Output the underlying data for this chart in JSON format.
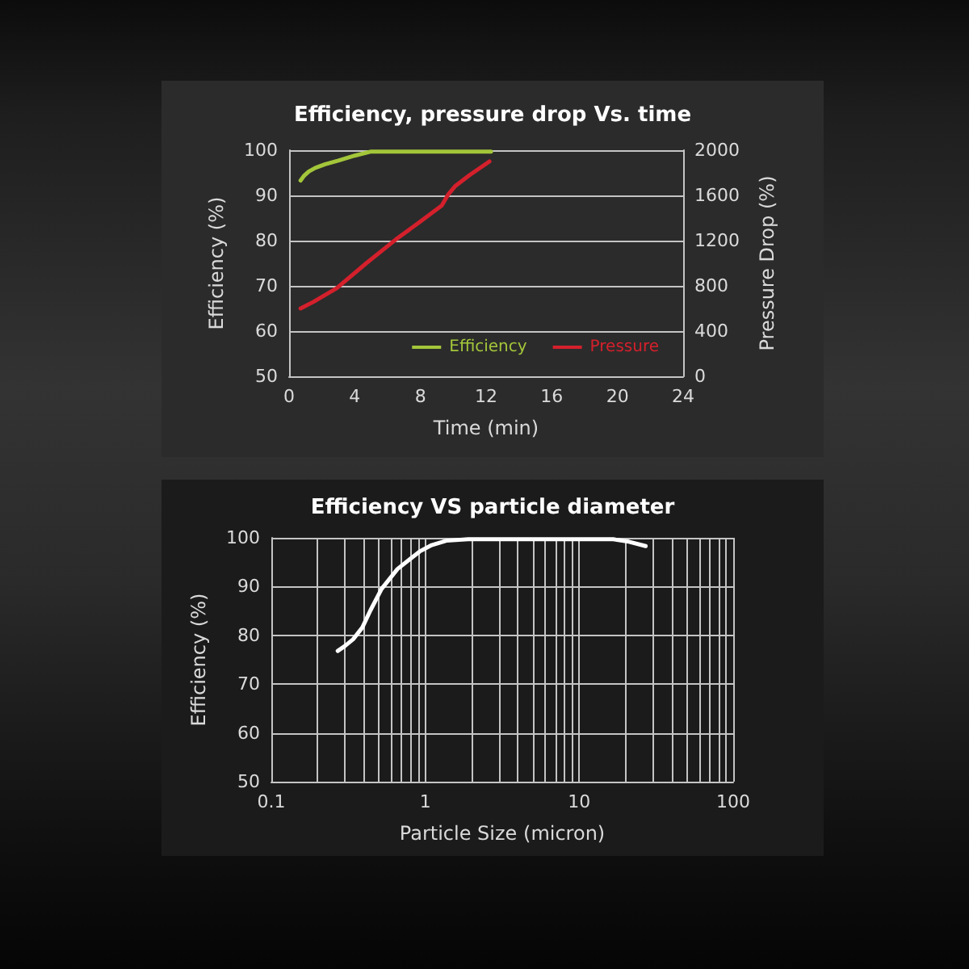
{
  "chart_data": [
    {
      "type": "line",
      "title": "Efficiency, pressure drop Vs. time",
      "xlabel": "Time (min)",
      "ylabel": "Efficiency (%)",
      "y2label": "Pressure Drop (%)",
      "xlim": [
        0,
        24
      ],
      "xticks": [
        0,
        4,
        8,
        12,
        16,
        20,
        24
      ],
      "ylim": [
        50,
        100
      ],
      "yticks": [
        50,
        60,
        70,
        80,
        90,
        100
      ],
      "y2lim": [
        0,
        2000
      ],
      "y2ticks": [
        0,
        400,
        800,
        1200,
        1600,
        2000
      ],
      "grid": "y",
      "legend": "bottom right",
      "series": [
        {
          "name": "Efficiency",
          "color": "#a3c63a",
          "x": [
            0.7,
            0.9,
            1.2,
            1.6,
            2.2,
            3.0,
            4.0,
            5.0,
            12.3
          ],
          "values": [
            93.3,
            94.3,
            95.3,
            96.1,
            96.9,
            97.7,
            98.8,
            99.7,
            99.7
          ]
        },
        {
          "name": "Pressure",
          "color": "#d4202c",
          "axis": "y2",
          "x": [
            0.7,
            1.5,
            2.9,
            4.7,
            6.5,
            8.0,
            9.3,
            9.5,
            9.7,
            10.1,
            11.0,
            12.2
          ],
          "values": [
            600,
            660,
            780,
            1000,
            1210,
            1370,
            1510,
            1560,
            1610,
            1680,
            1780,
            1900
          ]
        }
      ]
    },
    {
      "type": "line",
      "title": "Efficiency VS particle diameter",
      "xlabel": "Particle Size (micron)",
      "ylabel": "Efficiency (%)",
      "log": "x",
      "xlim": [
        0.1,
        100
      ],
      "xticks": [
        0.1,
        {
          "value": 0.2,
          "label": null
        },
        {
          "value": 0.3,
          "label": null
        },
        {
          "value": 0.4,
          "label": null
        },
        {
          "value": 0.5,
          "label": null
        },
        {
          "value": 0.6,
          "label": null
        },
        {
          "value": 0.7,
          "label": null
        },
        {
          "value": 0.8,
          "label": null
        },
        {
          "value": 0.9,
          "label": null
        },
        1,
        {
          "value": 2,
          "label": null
        },
        {
          "value": 3,
          "label": null
        },
        {
          "value": 4,
          "label": null
        },
        {
          "value": 5,
          "label": null
        },
        {
          "value": 6,
          "label": null
        },
        {
          "value": 7,
          "label": null
        },
        {
          "value": 8,
          "label": null
        },
        {
          "value": 9,
          "label": null
        },
        10,
        {
          "value": 20,
          "label": null
        },
        {
          "value": 30,
          "label": null
        },
        {
          "value": 40,
          "label": null
        },
        {
          "value": 50,
          "label": null
        },
        {
          "value": 60,
          "label": null
        },
        {
          "value": 70,
          "label": null
        },
        {
          "value": 80,
          "label": null
        },
        {
          "value": 90,
          "label": null
        },
        100
      ],
      "ylim": [
        50,
        100
      ],
      "yticks": [
        50,
        60,
        70,
        80,
        90,
        100
      ],
      "grid": true,
      "series": [
        {
          "color": "#ffffff",
          "x": [
            0.27,
            0.3,
            0.34,
            0.39,
            0.44,
            0.52,
            0.66,
            0.8,
            0.92,
            1.1,
            1.37,
            1.9,
            5,
            16.6,
            21,
            27
          ],
          "values": [
            76.8,
            77.8,
            79.2,
            81.6,
            85.1,
            89.5,
            93.6,
            95.7,
            97.2,
            98.5,
            99.4,
            99.7,
            99.7,
            99.7,
            99.2,
            98.3
          ]
        }
      ]
    }
  ]
}
